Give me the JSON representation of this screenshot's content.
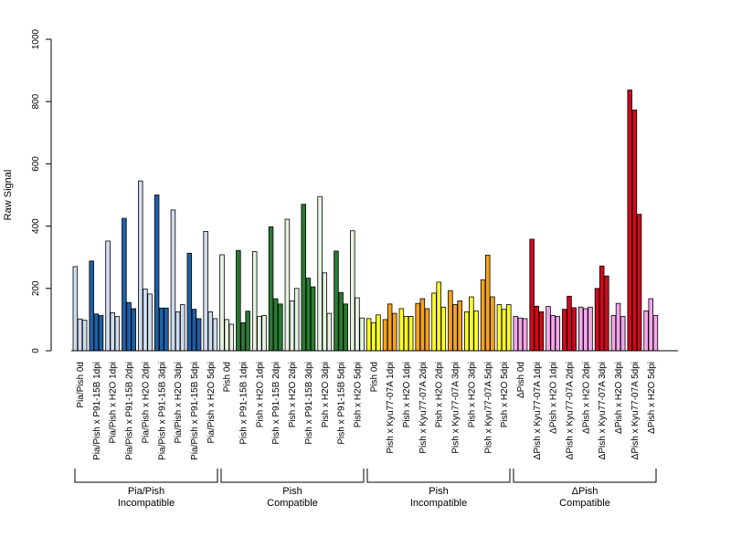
{
  "chart_data": {
    "type": "bar",
    "ylabel": "Raw Signal",
    "ylim": [
      0,
      1000
    ],
    "yticks": [
      "0",
      "200",
      "400",
      "600",
      "800",
      "1000"
    ],
    "grid": false,
    "legend": "none",
    "categories": [
      "Pia/Pish 0d",
      "Pia/Pish x P91-15B 1dpi",
      "Pia/Pish x H2O 1dpi",
      "Pia/Pish x P91-15B 2dpi",
      "Pia/Pish x H2O 2dpi",
      "Pia/Pish x P91-15B 3dpi",
      "Pia/Pish x H2O 3dpi",
      "Pia/Pish x P91-15B 5dpi",
      "Pia/Pish x H2O 5dpi",
      "Pish 0d",
      "Pish x P91-15B 1dpi",
      "Pish x H2O 1dpi",
      "Pish x P91-15B 2dpi",
      "Pish x H2O 2dpi",
      "Pish x P91-15B 3dpi",
      "Pish x H2O 3dpi",
      "Pish x P91-15B 5dpi",
      "Pish x H2O 5dpi",
      "Pish 0d",
      "Pish x Kyu77-07A 1dpi",
      "Pish x H2O 1dpi",
      "Pish x Kyu77-07A 2dpi",
      "Pish x H2O 2dpi",
      "Pish x Kyu77-07A 3dpi",
      "Pish x H2O 3dpi",
      "Pish x Kyu77-07A 5dpi",
      "Pish x H2O 5dpi",
      "ΔPish 0d",
      "ΔPish x Kyu77-07A 1dpi",
      "ΔPish x H2O 1dpi",
      "ΔPish x Kyu77-07A 2dpi",
      "ΔPish x H2O 2dpi",
      "ΔPish x Kyu77-07A 3dpi",
      "ΔPish x H2O 3dpi",
      "ΔPish x Kyu77-07A 5dpi",
      "ΔPish x H2O 5dpi"
    ],
    "colors": [
      "#cfdcef",
      "#1f5fa6",
      "#cfdcef",
      "#1f5fa6",
      "#cfdcef",
      "#1f5fa6",
      "#cfdcef",
      "#1f5fa6",
      "#cfdcef",
      "#e6f3e2",
      "#2a7a33",
      "#e6f3e2",
      "#2a7a33",
      "#e6f3e2",
      "#2a7a33",
      "#e6f3e2",
      "#2a7a33",
      "#e6f3e2",
      "#ffff26",
      "#f4a21b",
      "#ffff26",
      "#f4a21b",
      "#ffff26",
      "#f4a21b",
      "#ffff26",
      "#f4a21b",
      "#ffff26",
      "#f4a6ea",
      "#d0091e",
      "#f4a6ea",
      "#d0091e",
      "#f4a6ea",
      "#d0091e",
      "#f4a6ea",
      "#d0091e",
      "#f4a6ea"
    ],
    "values": [
      [
        270,
        102,
        98
      ],
      [
        288,
        118,
        113
      ],
      [
        352,
        122,
        110
      ],
      [
        425,
        155,
        135
      ],
      [
        545,
        198,
        182
      ],
      [
        500,
        137,
        137
      ],
      [
        452,
        125,
        148
      ],
      [
        313,
        133,
        103
      ],
      [
        383,
        125,
        103
      ],
      [
        308,
        100,
        85
      ],
      [
        322,
        90,
        127
      ],
      [
        318,
        110,
        113
      ],
      [
        398,
        167,
        150
      ],
      [
        422,
        160,
        200
      ],
      [
        470,
        233,
        205
      ],
      [
        495,
        250,
        120
      ],
      [
        320,
        187,
        150
      ],
      [
        385,
        170,
        105
      ],
      [
        103,
        90,
        115
      ],
      [
        100,
        150,
        120
      ],
      [
        135,
        110,
        110
      ],
      [
        152,
        167,
        135
      ],
      [
        185,
        220,
        140
      ],
      [
        193,
        148,
        160
      ],
      [
        125,
        173,
        128
      ],
      [
        228,
        307,
        173
      ],
      [
        148,
        133,
        148
      ],
      [
        110,
        105,
        103
      ],
      [
        358,
        143,
        125
      ],
      [
        142,
        113,
        110
      ],
      [
        133,
        175,
        138
      ],
      [
        140,
        135,
        140
      ],
      [
        200,
        272,
        240
      ],
      [
        113,
        152,
        110
      ],
      [
        837,
        773,
        438
      ],
      [
        128,
        167,
        113
      ]
    ],
    "groups": [
      {
        "label": "Pia/Pish\nIncompatible",
        "lines": [
          "Pia/Pish",
          "Incompatible"
        ]
      },
      {
        "label": "Pish\nCompatible",
        "lines": [
          "Pish",
          "Compatible"
        ]
      },
      {
        "label": "Pish\nIncompatible",
        "lines": [
          "Pish",
          "Incompatible"
        ]
      },
      {
        "label": "ΔPish\nCompatible",
        "lines": [
          "ΔPish",
          "Compatible"
        ]
      }
    ]
  }
}
